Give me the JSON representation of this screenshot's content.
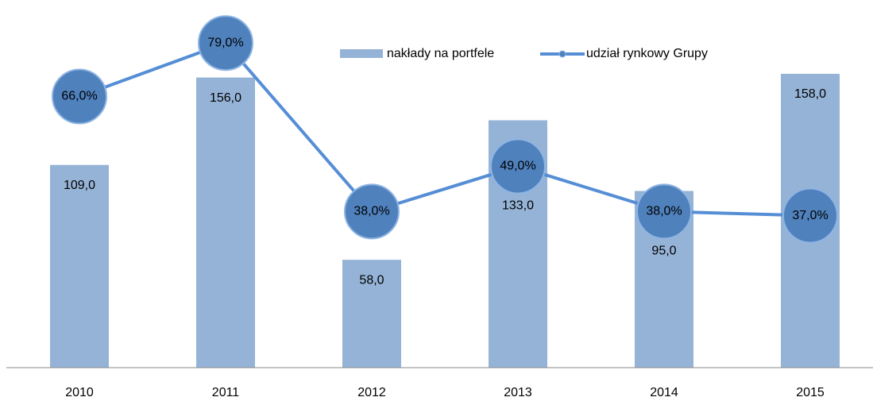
{
  "chart_data": {
    "type": "bar-line",
    "categories": [
      "2010",
      "2011",
      "2012",
      "2013",
      "2014",
      "2015"
    ],
    "series": [
      {
        "name": "nakłady na portfele",
        "color": "#95b3d7",
        "type": "bar",
        "values": [
          109,
          156,
          58,
          133,
          95,
          158
        ],
        "value_labels": [
          "109,0",
          "156,0",
          "58,0",
          "133,0",
          "95,0",
          "158,0"
        ]
      },
      {
        "name": "udział rynkowy Grupy",
        "color": "#558ed5",
        "type": "line",
        "axis": "y2",
        "values": [
          66,
          79,
          38,
          49,
          38,
          37
        ],
        "value_labels": [
          "66,0%",
          "79,0%",
          "38,0%",
          "49,0%",
          "38,0%",
          "37,0%"
        ]
      }
    ],
    "ylim": [
      0,
      190
    ],
    "y2lim": [
      0,
      86
    ],
    "legend": "top"
  }
}
